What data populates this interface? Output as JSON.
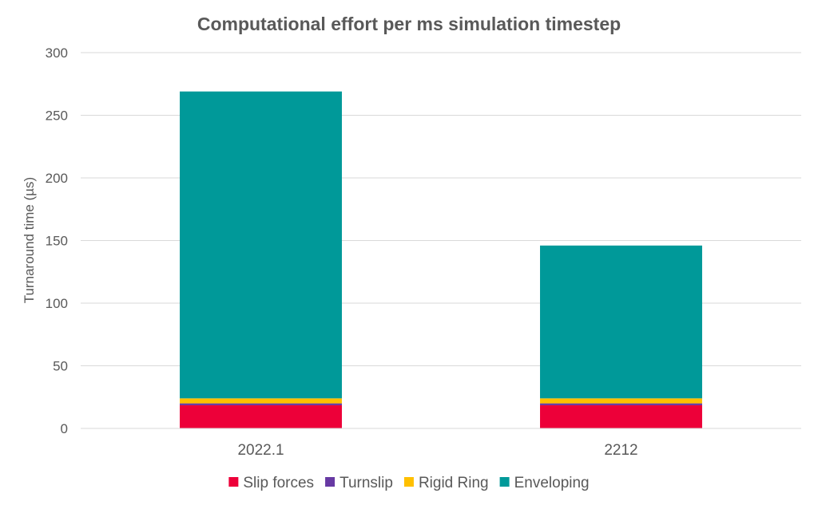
{
  "chart_data": {
    "type": "bar",
    "stacked": true,
    "title": "Computational effort per ms simulation timestep",
    "xlabel": "",
    "ylabel": "Turnaround time (µs)",
    "ylim": [
      0,
      300
    ],
    "yticks": [
      0,
      50,
      100,
      150,
      200,
      250,
      300
    ],
    "grid": true,
    "legend_position": "bottom",
    "categories": [
      "2022.1",
      "2212"
    ],
    "series": [
      {
        "name": "Slip forces",
        "color": "#ed0039",
        "values": [
          18.5,
          18.5
        ]
      },
      {
        "name": "Turnslip",
        "color": "#6739a3",
        "values": [
          1.5,
          1.5
        ]
      },
      {
        "name": "Rigid Ring",
        "color": "#ffc000",
        "values": [
          4,
          4
        ]
      },
      {
        "name": "Enveloping",
        "color": "#009999",
        "values": [
          245,
          122
        ]
      }
    ]
  }
}
